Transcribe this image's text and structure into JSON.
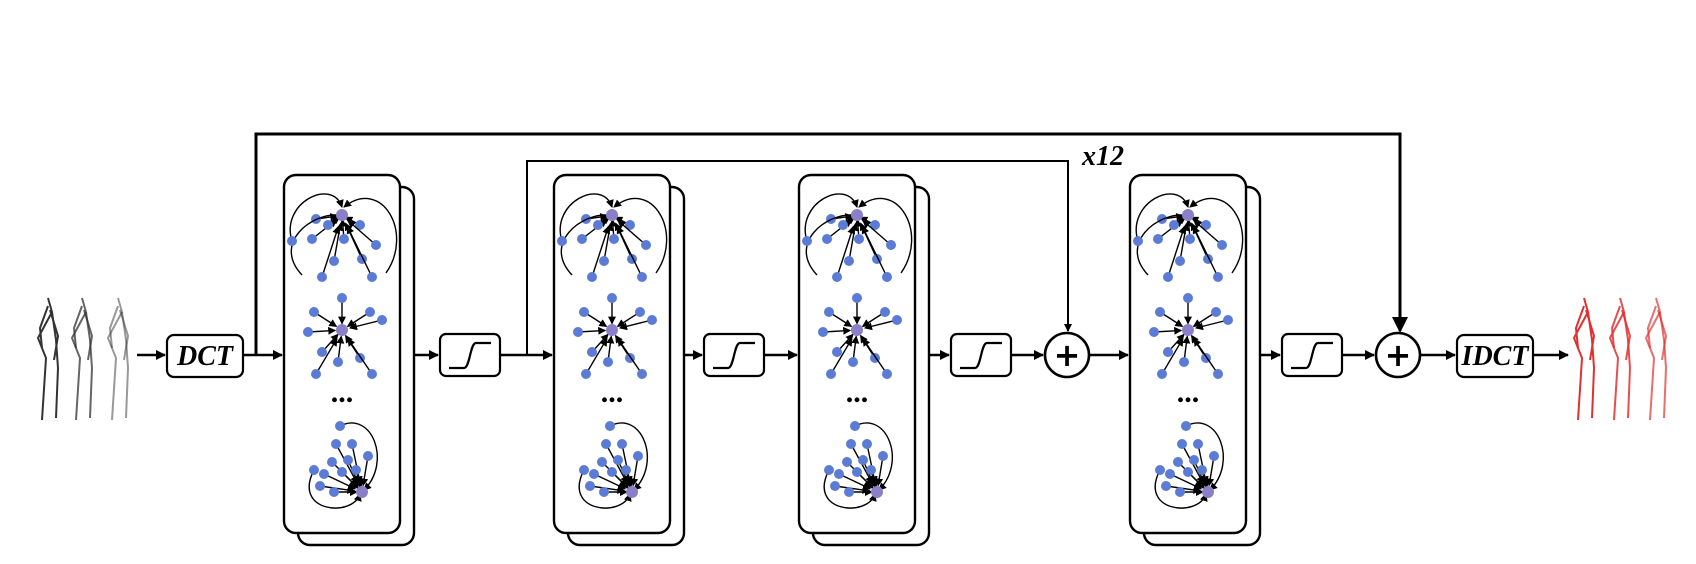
{
  "labels": {
    "dct": "DCT",
    "idct": "IDCT",
    "repeat": "x12",
    "ellipsis": "...",
    "plus": "+"
  },
  "colors": {
    "node": "#5b7bd5",
    "center_node": "#8a7fc8",
    "output_pose": "#e03030",
    "input_pose": "#333333",
    "line": "#000000"
  },
  "icons": {
    "activation": "sigmoid-icon",
    "sum": "plus-circle-icon",
    "graph": "star-graph-icon"
  },
  "gcn_blocks": [
    "gcn-block-1",
    "gcn-block-2",
    "gcn-block-3",
    "gcn-block-4"
  ],
  "activations": [
    "activation-1",
    "activation-2",
    "activation-3",
    "activation-4"
  ],
  "sums": [
    "sum-1",
    "sum-2"
  ]
}
